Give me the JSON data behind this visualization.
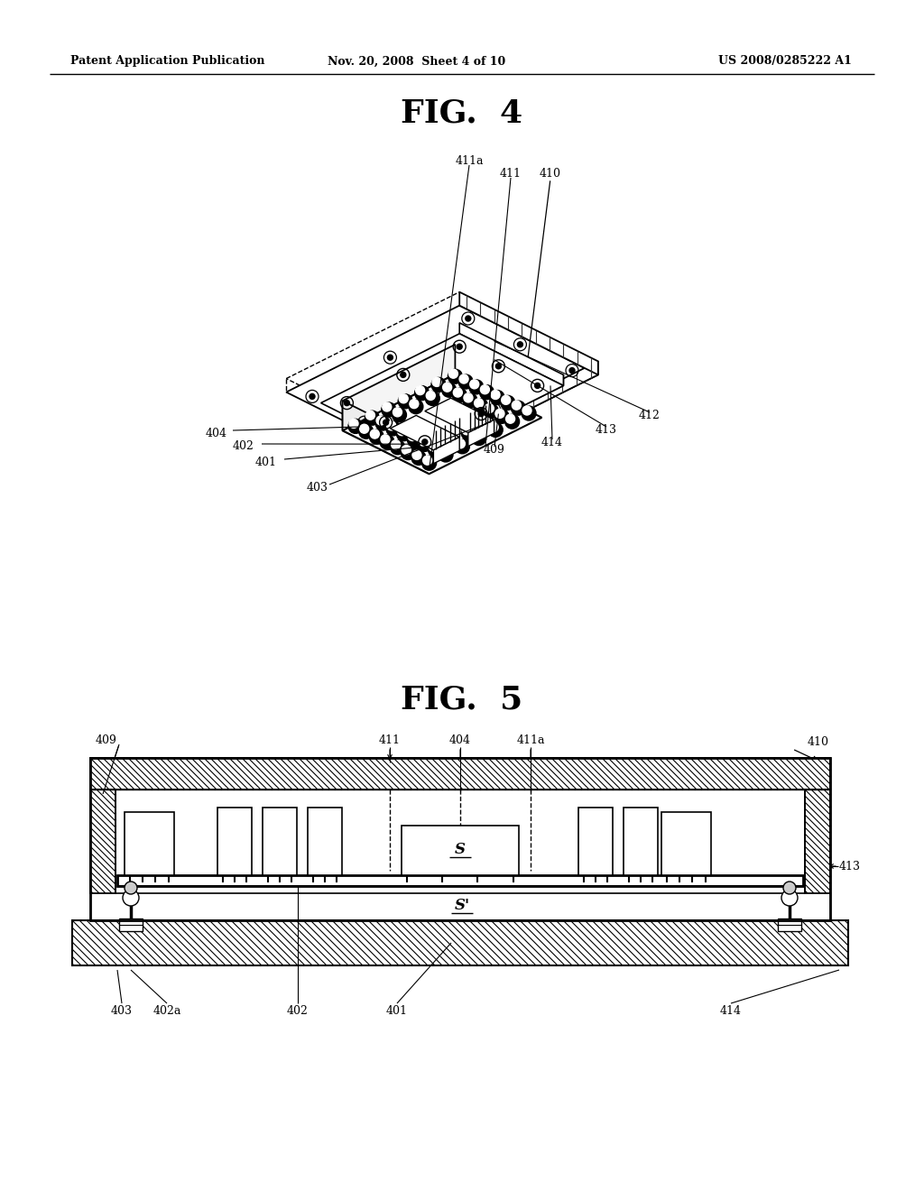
{
  "bg_color": "#ffffff",
  "header_left": "Patent Application Publication",
  "header_center": "Nov. 20, 2008  Sheet 4 of 10",
  "header_right": "US 2008/0285222 A1",
  "fig4_title": "FIG.  4",
  "fig5_title": "FIG.  5"
}
